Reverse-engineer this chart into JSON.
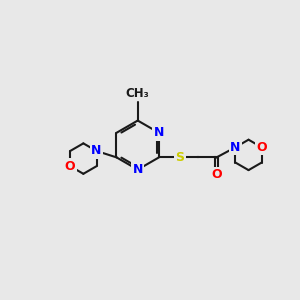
{
  "bg_color": "#e8e8e8",
  "bond_color": "#1a1a1a",
  "N_color": "#0000ff",
  "O_color": "#ff0000",
  "S_color": "#cccc00",
  "C_color": "#1a1a1a",
  "line_width": 1.5,
  "font_size": 9,
  "figsize": [
    3.0,
    3.0
  ],
  "dpi": 100,
  "xlim": [
    0,
    12
  ],
  "ylim": [
    0,
    12
  ]
}
